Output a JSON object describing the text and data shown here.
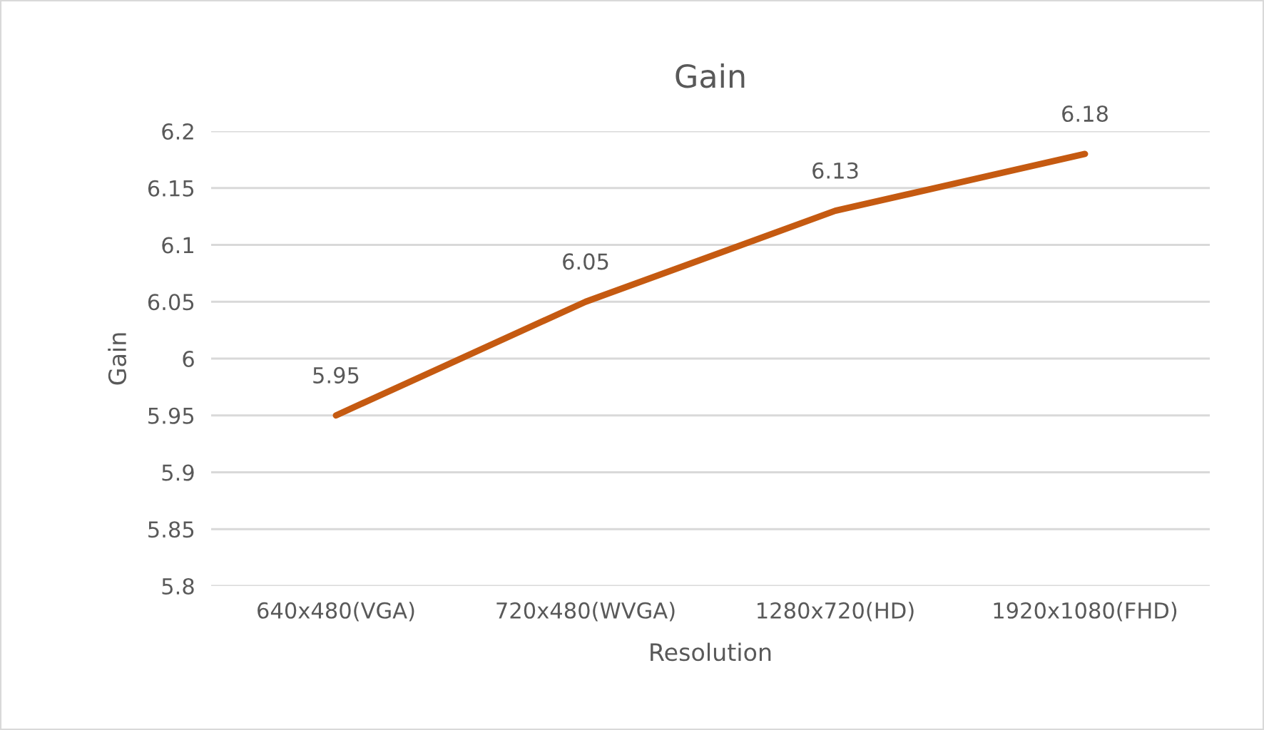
{
  "chart_data": {
    "type": "line",
    "title": "Gain",
    "xlabel": "Resolution",
    "ylabel": "Gain",
    "categories": [
      "640x480(VGA)",
      "720x480(WVGA)",
      "1280x720(HD)",
      "1920x1080(FHD)"
    ],
    "series": [
      {
        "color": "#c55a11",
        "values": [
          5.95,
          6.05,
          6.13,
          6.18
        ]
      }
    ],
    "ylim": [
      5.8,
      6.2
    ],
    "yticks": [
      5.8,
      5.85,
      5.9,
      5.95,
      6,
      6.05,
      6.1,
      6.15,
      6.2
    ],
    "grid": "y",
    "data_labels": true,
    "marker": "none",
    "line_style": "solid"
  }
}
